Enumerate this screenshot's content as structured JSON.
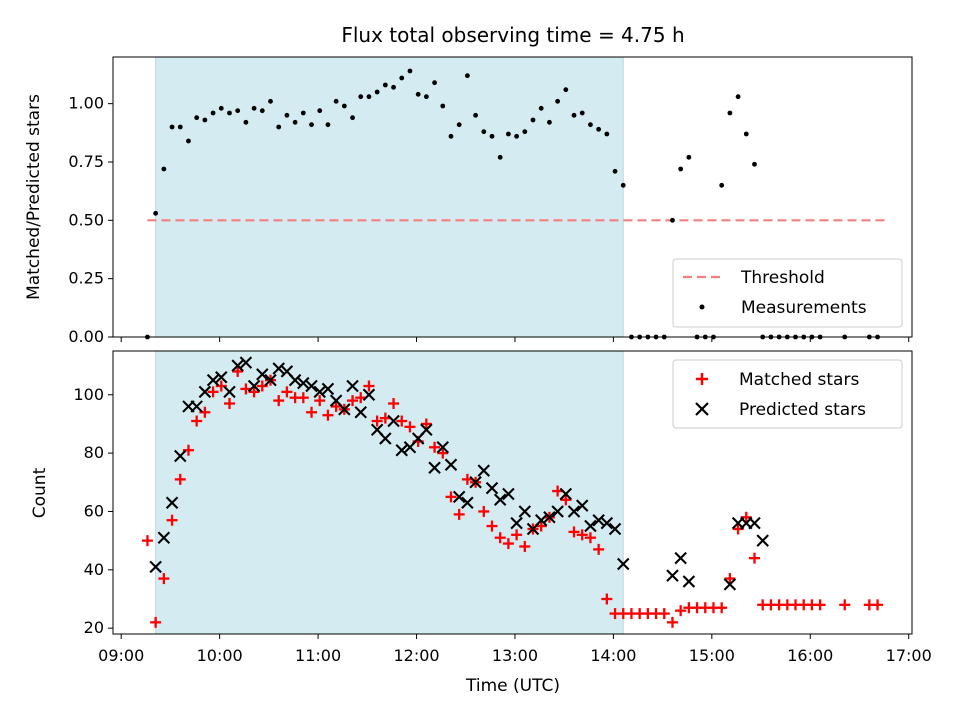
{
  "chart_data": [
    {
      "type": "scatter",
      "title": "Flux total observing time = 4.75 h",
      "ylabel": "Matched/Predicted stars",
      "xlabel": "",
      "ylim": [
        0,
        1.2
      ],
      "yticks": [
        "0.00",
        "0.25",
        "0.50",
        "0.75",
        "1.00"
      ],
      "xlim": [
        "09:00",
        "17:00"
      ],
      "observing_window": [
        "09:21",
        "14:06"
      ],
      "observing_window_color": "#d4ebf1",
      "series": [
        {
          "name": "Threshold",
          "style": "dashed-line",
          "color": "#f47f7f",
          "x": [
            "09:16",
            "16:46"
          ],
          "y": [
            0.5,
            0.5
          ]
        },
        {
          "name": "Measurements",
          "style": "dot",
          "color": "#000000",
          "x": [
            "09:16",
            "09:21",
            "09:26",
            "09:31",
            "09:36",
            "09:41",
            "09:46",
            "09:51",
            "09:56",
            "10:01",
            "10:06",
            "10:11",
            "10:16",
            "10:21",
            "10:26",
            "10:31",
            "10:36",
            "10:41",
            "10:46",
            "10:51",
            "10:56",
            "11:01",
            "11:06",
            "11:11",
            "11:16",
            "11:21",
            "11:26",
            "11:31",
            "11:36",
            "11:41",
            "11:46",
            "11:51",
            "11:56",
            "12:01",
            "12:06",
            "12:11",
            "12:16",
            "12:21",
            "12:26",
            "12:31",
            "12:36",
            "12:41",
            "12:46",
            "12:51",
            "12:56",
            "13:01",
            "13:06",
            "13:11",
            "13:16",
            "13:21",
            "13:26",
            "13:31",
            "13:36",
            "13:41",
            "13:46",
            "13:51",
            "13:56",
            "14:01",
            "14:06",
            "14:11",
            "14:16",
            "14:21",
            "14:26",
            "14:31",
            "14:36",
            "14:41",
            "14:46",
            "14:51",
            "14:56",
            "15:01",
            "15:06",
            "15:11",
            "15:16",
            "15:21",
            "15:26",
            "15:31",
            "15:36",
            "15:41",
            "15:46",
            "15:51",
            "15:56",
            "16:01",
            "16:06",
            "16:21",
            "16:36",
            "16:41"
          ],
          "y": [
            0.0,
            0.53,
            0.72,
            0.9,
            0.9,
            0.84,
            0.94,
            0.93,
            0.96,
            0.98,
            0.96,
            0.97,
            0.92,
            0.98,
            0.97,
            1.01,
            0.9,
            0.95,
            0.92,
            0.96,
            0.91,
            0.97,
            0.91,
            1.01,
            0.99,
            0.94,
            1.03,
            1.03,
            1.05,
            1.08,
            1.07,
            1.11,
            1.14,
            1.04,
            1.03,
            1.09,
            0.99,
            0.86,
            0.91,
            1.12,
            0.95,
            0.88,
            0.86,
            0.77,
            0.87,
            0.86,
            0.88,
            0.93,
            0.98,
            0.92,
            1.01,
            1.06,
            0.95,
            0.96,
            0.91,
            0.89,
            0.87,
            0.71,
            0.65,
            0.0,
            0.0,
            0.0,
            0.0,
            0.0,
            0.5,
            0.72,
            0.77,
            0.0,
            0.0,
            0.0,
            0.65,
            0.96,
            1.03,
            0.87,
            0.74,
            0.0,
            0.0,
            0.0,
            0.0,
            0.0,
            0.0,
            0.0,
            0.0,
            0.0,
            0.0,
            0.0
          ]
        }
      ],
      "legend_position": "lower-right",
      "legend": [
        "Threshold",
        "Measurements"
      ]
    },
    {
      "type": "scatter",
      "title": "",
      "ylabel": "Count",
      "xlabel": "Time (UTC)",
      "ylim": [
        18,
        115
      ],
      "yticks": [
        "20",
        "40",
        "60",
        "80",
        "100"
      ],
      "xticks": [
        "09:00",
        "10:00",
        "11:00",
        "12:00",
        "13:00",
        "14:00",
        "15:00",
        "16:00",
        "17:00"
      ],
      "observing_window": [
        "09:21",
        "14:06"
      ],
      "series": [
        {
          "name": "Matched stars",
          "style": "plus",
          "color": "#ff0000",
          "x": [
            "09:16",
            "09:21",
            "09:26",
            "09:31",
            "09:36",
            "09:41",
            "09:46",
            "09:51",
            "09:56",
            "10:01",
            "10:06",
            "10:11",
            "10:16",
            "10:21",
            "10:26",
            "10:31",
            "10:36",
            "10:41",
            "10:46",
            "10:51",
            "10:56",
            "11:01",
            "11:06",
            "11:11",
            "11:16",
            "11:21",
            "11:26",
            "11:31",
            "11:36",
            "11:41",
            "11:46",
            "11:51",
            "11:56",
            "12:01",
            "12:06",
            "12:11",
            "12:16",
            "12:21",
            "12:26",
            "12:31",
            "12:36",
            "12:41",
            "12:46",
            "12:51",
            "12:56",
            "13:01",
            "13:06",
            "13:11",
            "13:16",
            "13:21",
            "13:26",
            "13:31",
            "13:36",
            "13:41",
            "13:46",
            "13:51",
            "13:56",
            "14:01",
            "14:06",
            "14:11",
            "14:16",
            "14:21",
            "14:26",
            "14:31",
            "14:36",
            "14:41",
            "14:46",
            "14:51",
            "14:56",
            "15:01",
            "15:06",
            "15:11",
            "15:16",
            "15:21",
            "15:26",
            "15:31",
            "15:36",
            "15:41",
            "15:46",
            "15:51",
            "15:56",
            "16:01",
            "16:06",
            "16:21",
            "16:36",
            "16:41"
          ],
          "y": [
            50,
            22,
            37,
            57,
            71,
            81,
            91,
            94,
            101,
            103,
            97,
            108,
            102,
            101,
            103,
            105,
            98,
            101,
            99,
            99,
            94,
            98,
            93,
            96,
            95,
            98,
            99,
            103,
            91,
            92,
            97,
            91,
            89,
            84,
            90,
            82,
            80,
            65,
            59,
            71,
            70,
            60,
            55,
            51,
            49,
            52,
            48,
            54,
            55,
            58,
            67,
            64,
            53,
            52,
            51,
            47,
            30,
            25,
            25,
            25,
            25,
            25,
            25,
            25,
            22,
            26,
            27,
            27,
            27,
            27,
            27,
            37,
            54,
            58,
            44,
            28,
            28,
            28,
            28,
            28,
            28,
            28,
            28,
            28,
            28,
            28
          ]
        },
        {
          "name": "Predicted stars",
          "style": "x",
          "color": "#000000",
          "x": [
            "09:21",
            "09:26",
            "09:31",
            "09:36",
            "09:41",
            "09:46",
            "09:51",
            "09:56",
            "10:01",
            "10:06",
            "10:11",
            "10:16",
            "10:21",
            "10:26",
            "10:31",
            "10:36",
            "10:41",
            "10:46",
            "10:51",
            "10:56",
            "11:01",
            "11:06",
            "11:11",
            "11:16",
            "11:21",
            "11:26",
            "11:31",
            "11:36",
            "11:41",
            "11:46",
            "11:51",
            "11:56",
            "12:01",
            "12:06",
            "12:11",
            "12:16",
            "12:21",
            "12:26",
            "12:31",
            "12:36",
            "12:41",
            "12:46",
            "12:51",
            "12:56",
            "13:01",
            "13:06",
            "13:11",
            "13:16",
            "13:21",
            "13:26",
            "13:31",
            "13:36",
            "13:41",
            "13:46",
            "13:51",
            "13:56",
            "14:01",
            "14:06",
            "14:36",
            "14:41",
            "14:46",
            "15:11",
            "15:16",
            "15:21",
            "15:26",
            "15:31"
          ],
          "y": [
            41,
            51,
            63,
            79,
            96,
            96,
            101,
            105,
            106,
            101,
            110,
            111,
            103,
            107,
            105,
            109,
            108,
            105,
            104,
            103,
            101,
            102,
            98,
            95,
            103,
            94,
            100,
            88,
            85,
            91,
            81,
            82,
            85,
            88,
            75,
            82,
            76,
            65,
            63,
            70,
            74,
            68,
            64,
            66,
            56,
            60,
            54,
            57,
            58,
            60,
            66,
            60,
            62,
            55,
            57,
            56,
            54,
            42,
            38,
            44,
            36,
            35,
            56,
            56,
            56,
            50
          ]
        }
      ],
      "legend_position": "upper-right",
      "legend": [
        "Matched stars",
        "Predicted stars"
      ]
    }
  ]
}
